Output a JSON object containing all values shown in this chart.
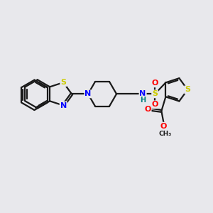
{
  "bg_color": "#e8e8ec",
  "bond_color": "#1a1a1a",
  "S_color": "#cccc00",
  "N_color": "#0000ff",
  "O_color": "#ff0000",
  "NH_color": "#008080",
  "lw": 1.6,
  "dbo": 0.055,
  "figsize": [
    3.0,
    3.0
  ],
  "dpi": 100,
  "xlim": [
    0,
    10
  ],
  "ylim": [
    0,
    10
  ]
}
